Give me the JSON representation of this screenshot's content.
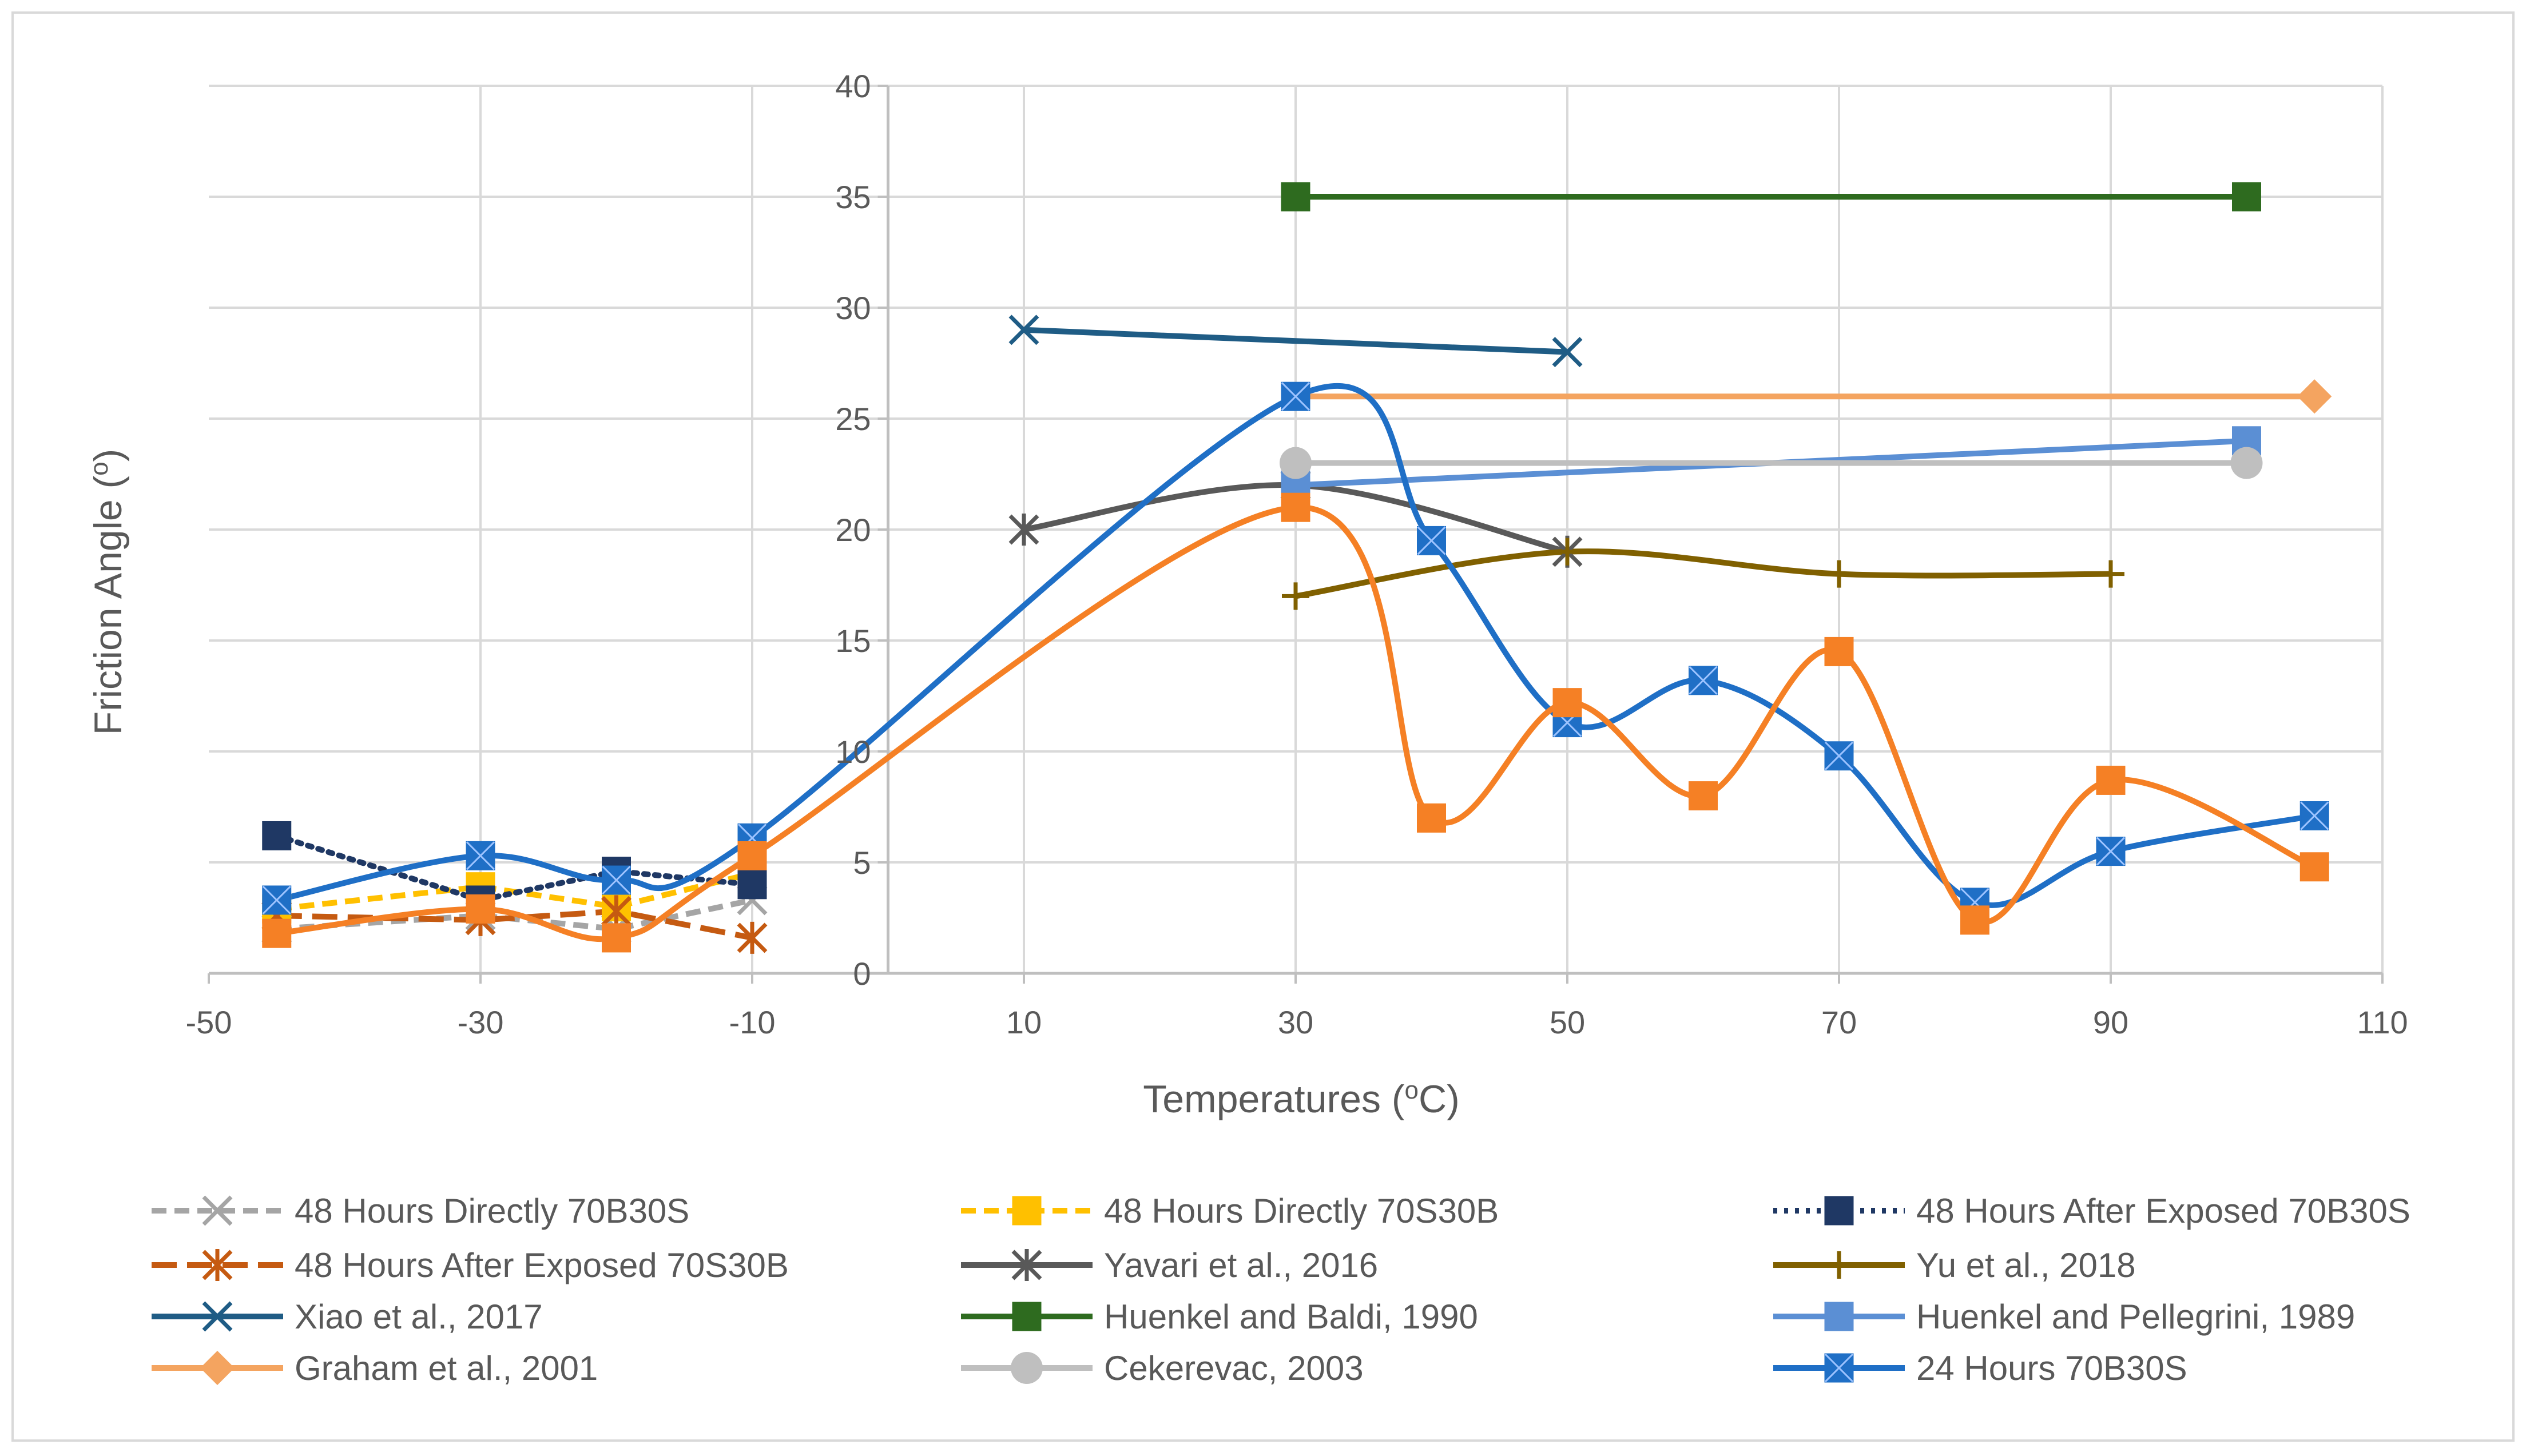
{
  "chart_data": {
    "type": "line",
    "title": "",
    "xlabel": "Temperatures (oC)",
    "ylabel": "Friction Angle (o)",
    "xlim": [
      -50,
      110
    ],
    "ylim": [
      0,
      40
    ],
    "x_ticks": [
      -50,
      -30,
      -10,
      10,
      30,
      50,
      70,
      90,
      110
    ],
    "y_ticks": [
      0,
      5,
      10,
      15,
      20,
      25,
      30,
      35,
      40
    ],
    "grid": true,
    "legend_position": "bottom",
    "series": [
      {
        "name": "48 Hours Directly 70B30S",
        "color": "#a5a5a5",
        "dash": "dash",
        "marker": "x",
        "smooth": false,
        "x": [
          -45,
          -30,
          -20,
          -10
        ],
        "y": [
          2.0,
          2.6,
          2.0,
          3.3
        ]
      },
      {
        "name": "48 Hours Directly 70S30B",
        "color": "#ffc000",
        "dash": "dash",
        "marker": "square",
        "smooth": false,
        "x": [
          -45,
          -30,
          -20,
          -10
        ],
        "y": [
          2.9,
          3.9,
          3.0,
          4.5
        ]
      },
      {
        "name": "48 Hours After Exposed 70B30S",
        "color": "#1f3864",
        "dash": "dot",
        "marker": "square",
        "smooth": false,
        "x": [
          -45,
          -30,
          -20,
          -10
        ],
        "y": [
          6.2,
          3.3,
          4.6,
          4.0
        ]
      },
      {
        "name": "48 Hours After Exposed 70S30B",
        "color": "#c55a11",
        "dash": "longdash",
        "marker": "asterisk",
        "smooth": false,
        "x": [
          -45,
          -30,
          -20,
          -10
        ],
        "y": [
          2.6,
          2.4,
          2.8,
          1.6
        ]
      },
      {
        "name": "Yavari et al., 2016",
        "color": "#595959",
        "dash": "solid",
        "marker": "asterisk",
        "smooth": true,
        "x": [
          10,
          30,
          50
        ],
        "y": [
          20,
          22,
          19
        ]
      },
      {
        "name": "Yu et al., 2018",
        "color": "#806000",
        "dash": "solid",
        "marker": "plus",
        "smooth": true,
        "x": [
          30,
          50,
          70,
          90
        ],
        "y": [
          17,
          19,
          18,
          18
        ]
      },
      {
        "name": "Xiao et al., 2017",
        "color": "#1f5c85",
        "dash": "solid",
        "marker": "x",
        "smooth": false,
        "x": [
          10,
          50
        ],
        "y": [
          29,
          28
        ]
      },
      {
        "name": "Huenkel and Baldi, 1990",
        "color": "#2e6b1f",
        "dash": "solid",
        "marker": "square",
        "smooth": false,
        "x": [
          30,
          100
        ],
        "y": [
          35,
          35
        ]
      },
      {
        "name": "Huenkel and Pellegrini, 1989",
        "color": "#5b8fd4",
        "dash": "solid",
        "marker": "square",
        "smooth": false,
        "x": [
          30,
          100
        ],
        "y": [
          22,
          24
        ]
      },
      {
        "name": "Graham et al., 2001",
        "color": "#f4a460",
        "dash": "solid",
        "marker": "diamond",
        "smooth": false,
        "x": [
          30,
          105
        ],
        "y": [
          26,
          26
        ],
        "marker_last_only": true
      },
      {
        "name": "Cekerevac, 2003",
        "color": "#bfbfbf",
        "dash": "solid",
        "marker": "circle",
        "smooth": false,
        "x": [
          30,
          100
        ],
        "y": [
          23,
          23
        ]
      },
      {
        "name": "24 Hours 70B30S",
        "color": "#1f6fc6",
        "dash": "solid",
        "marker": "square-star",
        "smooth": true,
        "x": [
          -45,
          -30,
          -20,
          -10,
          30,
          40,
          50,
          60,
          70,
          80,
          90,
          105
        ],
        "y": [
          3.3,
          5.3,
          4.2,
          6.1,
          26,
          19.5,
          11.3,
          13.2,
          9.8,
          3.2,
          5.5,
          7.1
        ]
      },
      {
        "name": "",
        "color": "#f58025",
        "dash": "solid",
        "marker": "square",
        "smooth": true,
        "in_legend": false,
        "x": [
          -45,
          -30,
          -20,
          -10,
          30,
          40,
          50,
          60,
          70,
          80,
          90,
          105
        ],
        "y": [
          1.8,
          2.9,
          1.6,
          5.3,
          21,
          7,
          12.2,
          8,
          14.5,
          2.4,
          8.7,
          4.8
        ]
      }
    ]
  }
}
